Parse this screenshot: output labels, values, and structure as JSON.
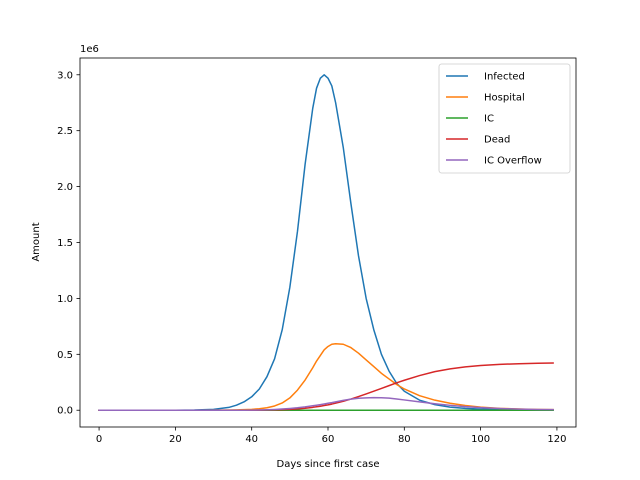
{
  "chart_data": {
    "type": "line",
    "xlabel": "Days since first case",
    "ylabel": "Amount",
    "y_offset_label": "1e6",
    "xlim": [
      -5,
      125
    ],
    "ylim": [
      -0.15,
      3.15
    ],
    "x_ticks": [
      0,
      20,
      40,
      60,
      80,
      100,
      120
    ],
    "y_ticks": [
      0.0,
      0.5,
      1.0,
      1.5,
      2.0,
      2.5,
      3.0
    ],
    "x_tick_labels": [
      "0",
      "20",
      "40",
      "60",
      "80",
      "100",
      "120"
    ],
    "y_tick_labels": [
      "0.0",
      "0.5",
      "1.0",
      "1.5",
      "2.0",
      "2.5",
      "3.0"
    ],
    "legend_position": "top-right",
    "grid": false,
    "x": [
      0,
      10,
      20,
      25,
      30,
      34,
      36,
      38,
      40,
      42,
      44,
      46,
      48,
      50,
      52,
      54,
      56,
      57,
      58,
      59,
      60,
      61,
      62,
      64,
      66,
      68,
      70,
      72,
      74,
      76,
      78,
      80,
      84,
      88,
      92,
      96,
      100,
      105,
      110,
      115,
      119
    ],
    "series": [
      {
        "name": "Infected",
        "color": "#1f77b4",
        "values": [
          0,
          0,
          0,
          0.002,
          0.008,
          0.025,
          0.045,
          0.075,
          0.12,
          0.19,
          0.3,
          0.46,
          0.72,
          1.1,
          1.6,
          2.2,
          2.7,
          2.88,
          2.97,
          3.0,
          2.97,
          2.9,
          2.75,
          2.35,
          1.85,
          1.38,
          1.0,
          0.72,
          0.5,
          0.35,
          0.24,
          0.17,
          0.09,
          0.05,
          0.028,
          0.017,
          0.01,
          0.006,
          0.004,
          0.002,
          0.001
        ]
      },
      {
        "name": "Hospital",
        "color": "#ff7f0e",
        "values": [
          0,
          0,
          0,
          0,
          0.001,
          0.002,
          0.003,
          0.005,
          0.008,
          0.013,
          0.022,
          0.038,
          0.065,
          0.11,
          0.18,
          0.27,
          0.38,
          0.44,
          0.49,
          0.54,
          0.57,
          0.59,
          0.595,
          0.59,
          0.56,
          0.51,
          0.45,
          0.39,
          0.33,
          0.28,
          0.23,
          0.19,
          0.13,
          0.09,
          0.062,
          0.042,
          0.028,
          0.017,
          0.011,
          0.007,
          0.005
        ]
      },
      {
        "name": "IC",
        "color": "#2ca02c",
        "values": [
          0,
          0,
          0,
          0,
          0,
          0,
          0,
          0,
          0,
          0,
          0,
          0,
          0,
          0,
          0,
          0,
          0,
          0,
          0,
          0,
          0,
          0,
          0,
          0,
          0,
          0,
          0,
          0,
          0,
          0,
          0,
          0,
          0,
          0,
          0,
          0,
          0,
          0,
          0,
          0,
          0
        ]
      },
      {
        "name": "Dead",
        "color": "#d62728",
        "values": [
          0,
          0,
          0,
          0,
          0,
          0,
          0,
          0,
          0,
          0.001,
          0.002,
          0.003,
          0.005,
          0.008,
          0.012,
          0.018,
          0.026,
          0.031,
          0.036,
          0.042,
          0.048,
          0.055,
          0.063,
          0.08,
          0.1,
          0.122,
          0.146,
          0.17,
          0.195,
          0.22,
          0.245,
          0.268,
          0.31,
          0.345,
          0.37,
          0.388,
          0.4,
          0.41,
          0.416,
          0.42,
          0.422
        ]
      },
      {
        "name": "IC Overflow",
        "color": "#9467bd",
        "values": [
          0,
          0,
          0,
          0,
          0,
          0,
          0,
          0,
          0.001,
          0.002,
          0.004,
          0.007,
          0.011,
          0.016,
          0.022,
          0.03,
          0.04,
          0.045,
          0.05,
          0.056,
          0.062,
          0.068,
          0.075,
          0.088,
          0.099,
          0.107,
          0.111,
          0.113,
          0.112,
          0.108,
          0.1,
          0.092,
          0.075,
          0.058,
          0.044,
          0.032,
          0.023,
          0.015,
          0.01,
          0.007,
          0.005
        ]
      }
    ]
  }
}
